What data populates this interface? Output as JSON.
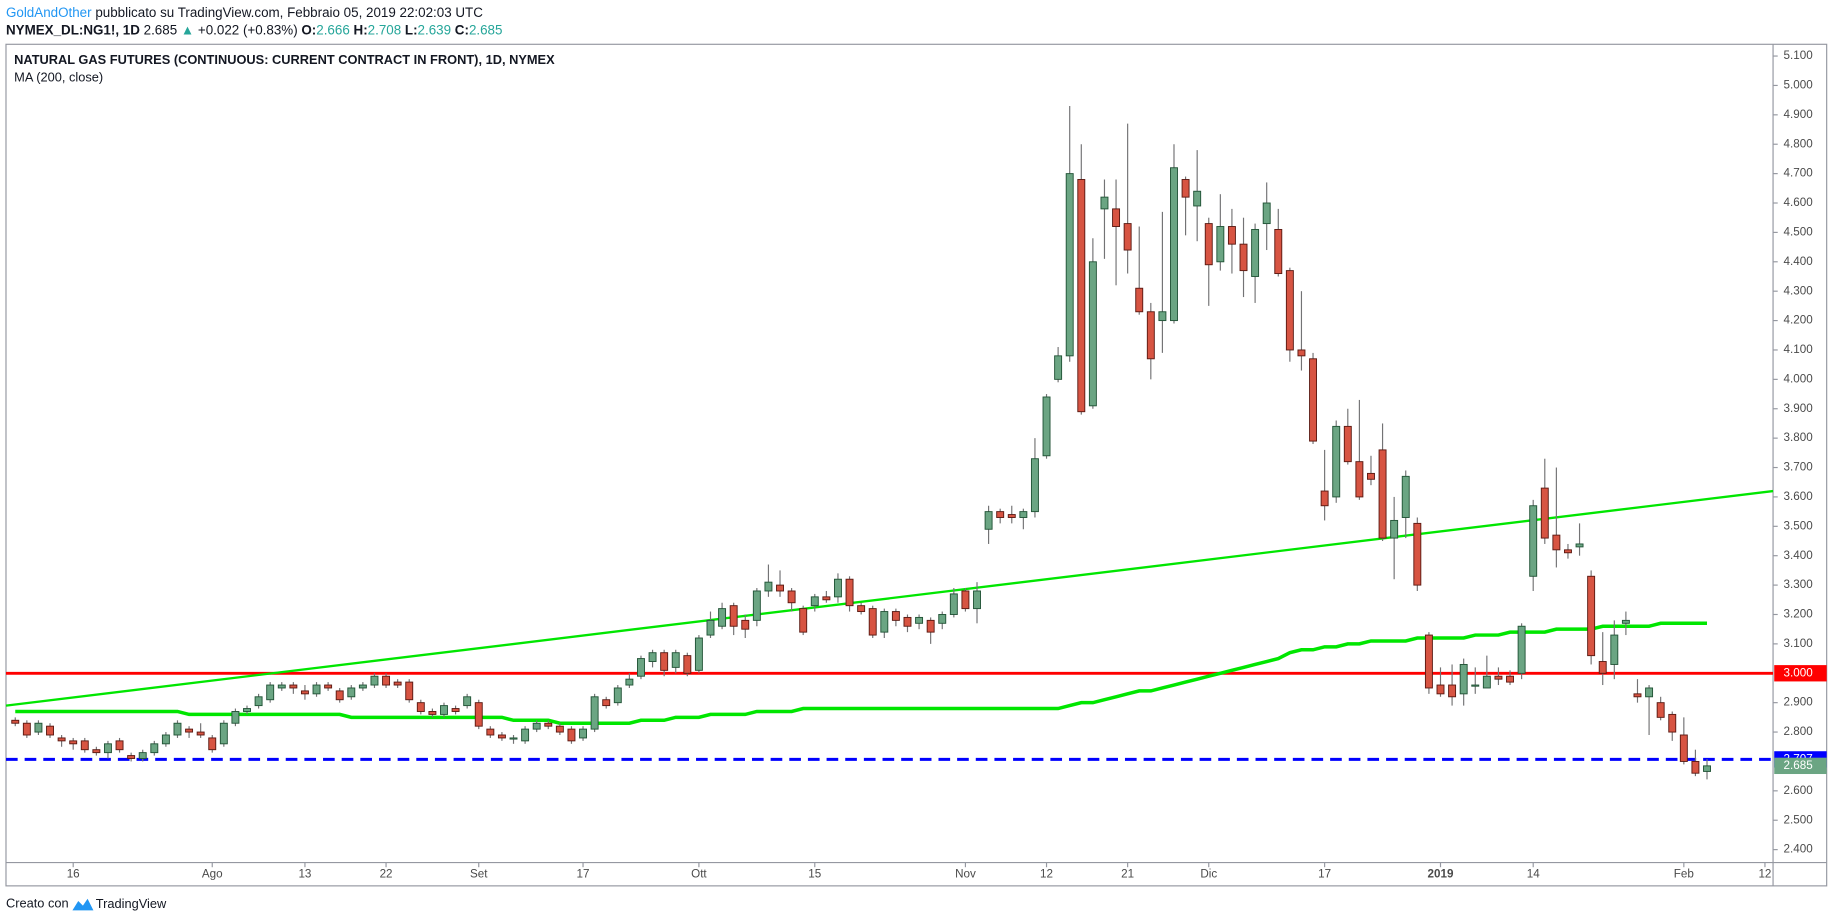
{
  "header": {
    "author": "GoldAndOther",
    "published": "pubblicato su TradingView.com, Febbraio 05, 2019 22:02:03 UTC",
    "symbol": "NYMEX_DL:NG1!, 1D",
    "last": "2.685",
    "arrow": "▲",
    "change": "+0.022 (+0.83%)",
    "o_label": "O:",
    "o": "2.666",
    "h_label": "H:",
    "h": "2.708",
    "l_label": "L:",
    "l": "2.639",
    "c_label": "C:",
    "c": "2.685"
  },
  "footer": {
    "text": "Creato con",
    "brand": "TradingView"
  },
  "chart_data": {
    "type": "candlestick",
    "title": "NATURAL GAS FUTURES (CONTINUOUS: CURRENT CONTRACT IN FRONT), 1D, NYMEX",
    "up_color": "#6ba583",
    "up_border": "#225437",
    "down_color": "#d75442",
    "down_border": "#5b1a13",
    "wick_color": "#737375",
    "open": [
      2.84,
      2.83,
      2.8,
      2.82,
      2.78,
      2.77,
      2.77,
      2.74,
      2.73,
      2.77,
      2.72,
      2.71,
      2.73,
      2.76,
      2.79,
      2.81,
      2.8,
      2.78,
      2.76,
      2.83,
      2.87,
      2.89,
      2.91,
      2.95,
      2.96,
      2.94,
      2.93,
      2.96,
      2.94,
      2.92,
      2.95,
      2.96,
      2.99,
      2.97,
      2.97,
      2.9,
      2.87,
      2.86,
      2.88,
      2.89,
      2.9,
      2.81,
      2.79,
      2.78,
      2.77,
      2.81,
      2.83,
      2.82,
      2.81,
      2.78,
      2.81,
      2.91,
      2.9,
      2.96,
      2.99,
      3.04,
      3.07,
      3.02,
      3.06,
      3.01,
      3.13,
      3.16,
      3.23,
      3.18,
      3.18,
      3.28,
      3.3,
      3.28,
      3.22,
      3.23,
      3.26,
      3.26,
      3.32,
      3.23,
      3.22,
      3.14,
      3.21,
      3.19,
      3.17,
      3.18,
      3.17,
      3.2,
      3.28,
      3.22,
      3.49,
      3.55,
      3.54,
      3.53,
      3.55,
      3.74,
      4.0,
      4.08,
      4.68,
      3.91,
      4.58,
      4.58,
      4.53,
      4.31,
      4.23,
      4.2,
      4.2,
      4.68,
      4.59,
      4.53,
      4.4,
      4.52,
      4.46,
      4.35,
      4.53,
      4.51,
      4.37,
      4.1,
      4.07,
      3.62,
      3.6,
      3.84,
      3.72,
      3.68,
      3.76,
      3.46,
      3.53,
      3.51,
      3.13,
      2.96,
      2.96,
      2.93,
      2.96,
      2.95,
      2.99,
      2.99,
      3.0,
      3.33,
      3.63,
      3.47,
      3.42,
      3.43,
      3.33,
      3.04,
      3.03,
      3.17,
      2.93,
      2.92,
      2.9,
      2.86,
      2.79,
      2.7,
      2.666
    ],
    "high": [
      2.85,
      2.84,
      2.84,
      2.83,
      2.79,
      2.78,
      2.78,
      2.75,
      2.77,
      2.78,
      2.73,
      2.74,
      2.77,
      2.8,
      2.84,
      2.82,
      2.83,
      2.79,
      2.84,
      2.88,
      2.89,
      2.93,
      2.97,
      2.97,
      2.97,
      2.96,
      2.97,
      2.97,
      2.95,
      2.96,
      2.97,
      3.0,
      3.0,
      2.98,
      2.98,
      2.91,
      2.88,
      2.9,
      2.89,
      2.93,
      2.91,
      2.82,
      2.8,
      2.79,
      2.82,
      2.84,
      2.84,
      2.83,
      2.82,
      2.82,
      2.93,
      2.92,
      2.96,
      3.0,
      3.06,
      3.08,
      3.08,
      3.08,
      3.07,
      3.13,
      3.21,
      3.24,
      3.24,
      3.2,
      3.29,
      3.37,
      3.35,
      3.29,
      3.23,
      3.27,
      3.28,
      3.34,
      3.33,
      3.24,
      3.23,
      3.22,
      3.22,
      3.2,
      3.2,
      3.19,
      3.21,
      3.29,
      3.29,
      3.31,
      3.57,
      3.56,
      3.57,
      3.56,
      3.8,
      3.95,
      4.11,
      4.93,
      4.8,
      4.48,
      4.68,
      4.68,
      4.87,
      4.52,
      4.26,
      4.57,
      4.8,
      4.69,
      4.78,
      4.55,
      4.63,
      4.58,
      4.55,
      4.53,
      4.67,
      4.58,
      4.38,
      4.3,
      4.09,
      3.76,
      3.86,
      3.9,
      3.93,
      3.74,
      3.85,
      3.6,
      3.69,
      3.53,
      3.14,
      3.02,
      3.03,
      3.05,
      3.02,
      3.06,
      3.02,
      3.01,
      3.17,
      3.59,
      3.73,
      3.7,
      3.44,
      3.51,
      3.35,
      3.14,
      3.18,
      3.21,
      2.98,
      2.96,
      2.92,
      2.87,
      2.85,
      2.74,
      2.708
    ],
    "low": [
      2.82,
      2.78,
      2.79,
      2.78,
      2.75,
      2.74,
      2.73,
      2.72,
      2.71,
      2.73,
      2.7,
      2.7,
      2.72,
      2.75,
      2.78,
      2.78,
      2.78,
      2.73,
      2.75,
      2.82,
      2.86,
      2.88,
      2.9,
      2.94,
      2.93,
      2.91,
      2.92,
      2.94,
      2.9,
      2.91,
      2.94,
      2.95,
      2.95,
      2.95,
      2.9,
      2.86,
      2.85,
      2.85,
      2.86,
      2.88,
      2.81,
      2.78,
      2.77,
      2.76,
      2.76,
      2.8,
      2.81,
      2.79,
      2.76,
      2.77,
      2.8,
      2.88,
      2.89,
      2.95,
      2.98,
      3.02,
      2.99,
      3.0,
      2.99,
      3.0,
      3.12,
      3.15,
      3.13,
      3.12,
      3.16,
      3.26,
      3.26,
      3.21,
      3.13,
      3.21,
      3.24,
      3.24,
      3.21,
      3.2,
      3.12,
      3.12,
      3.16,
      3.14,
      3.15,
      3.1,
      3.15,
      3.19,
      3.21,
      3.17,
      3.44,
      3.51,
      3.51,
      3.49,
      3.53,
      3.73,
      3.99,
      4.06,
      3.88,
      3.9,
      4.41,
      4.32,
      4.36,
      4.22,
      4.0,
      4.09,
      4.19,
      4.49,
      4.47,
      4.25,
      4.37,
      4.36,
      4.28,
      4.26,
      4.44,
      4.35,
      4.06,
      4.03,
      3.78,
      3.52,
      3.58,
      3.71,
      3.59,
      3.64,
      3.45,
      3.32,
      3.46,
      3.28,
      2.93,
      2.92,
      2.89,
      2.89,
      2.93,
      2.95,
      2.96,
      2.96,
      2.98,
      3.28,
      3.44,
      3.36,
      3.39,
      3.4,
      3.03,
      2.96,
      2.98,
      3.13,
      2.9,
      2.79,
      2.84,
      2.77,
      2.69,
      2.65,
      2.639
    ],
    "close": [
      2.83,
      2.79,
      2.83,
      2.79,
      2.77,
      2.76,
      2.74,
      2.73,
      2.76,
      2.74,
      2.71,
      2.73,
      2.76,
      2.79,
      2.83,
      2.8,
      2.79,
      2.74,
      2.83,
      2.87,
      2.88,
      2.92,
      2.96,
      2.96,
      2.95,
      2.93,
      2.96,
      2.95,
      2.91,
      2.95,
      2.96,
      2.99,
      2.96,
      2.96,
      2.91,
      2.87,
      2.86,
      2.89,
      2.87,
      2.92,
      2.82,
      2.79,
      2.78,
      2.78,
      2.81,
      2.83,
      2.82,
      2.8,
      2.77,
      2.81,
      2.92,
      2.89,
      2.95,
      2.98,
      3.05,
      3.07,
      3.01,
      3.07,
      3.0,
      3.12,
      3.18,
      3.22,
      3.16,
      3.15,
      3.28,
      3.31,
      3.28,
      3.24,
      3.14,
      3.26,
      3.25,
      3.32,
      3.23,
      3.21,
      3.13,
      3.21,
      3.18,
      3.16,
      3.19,
      3.14,
      3.2,
      3.27,
      3.22,
      3.28,
      3.55,
      3.53,
      3.53,
      3.55,
      3.73,
      3.94,
      4.08,
      4.7,
      3.89,
      4.4,
      4.62,
      4.52,
      4.44,
      4.23,
      4.07,
      4.23,
      4.72,
      4.62,
      4.64,
      4.39,
      4.52,
      4.46,
      4.37,
      4.51,
      4.6,
      4.36,
      4.1,
      4.08,
      3.79,
      3.57,
      3.84,
      3.72,
      3.6,
      3.66,
      3.46,
      3.52,
      3.67,
      3.3,
      2.95,
      2.93,
      2.92,
      3.03,
      2.96,
      2.99,
      2.98,
      2.97,
      3.16,
      3.57,
      3.46,
      3.42,
      3.41,
      3.44,
      3.06,
      3.0,
      3.13,
      3.18,
      2.92,
      2.95,
      2.85,
      2.8,
      2.7,
      2.66,
      2.685
    ],
    "ma": {
      "name": "MA (200, close)",
      "color": "#00e600",
      "values": [
        2.87,
        2.87,
        2.87,
        2.87,
        2.87,
        2.87,
        2.87,
        2.87,
        2.87,
        2.87,
        2.87,
        2.87,
        2.87,
        2.87,
        2.87,
        2.86,
        2.86,
        2.86,
        2.86,
        2.86,
        2.86,
        2.86,
        2.86,
        2.86,
        2.86,
        2.86,
        2.86,
        2.86,
        2.86,
        2.85,
        2.85,
        2.85,
        2.85,
        2.85,
        2.85,
        2.85,
        2.85,
        2.85,
        2.85,
        2.85,
        2.85,
        2.85,
        2.85,
        2.84,
        2.84,
        2.84,
        2.84,
        2.83,
        2.83,
        2.83,
        2.83,
        2.83,
        2.83,
        2.83,
        2.84,
        2.84,
        2.84,
        2.85,
        2.85,
        2.85,
        2.86,
        2.86,
        2.86,
        2.86,
        2.87,
        2.87,
        2.87,
        2.87,
        2.88,
        2.88,
        2.88,
        2.88,
        2.88,
        2.88,
        2.88,
        2.88,
        2.88,
        2.88,
        2.88,
        2.88,
        2.88,
        2.88,
        2.88,
        2.88,
        2.88,
        2.88,
        2.88,
        2.88,
        2.88,
        2.88,
        2.88,
        2.89,
        2.9,
        2.9,
        2.91,
        2.92,
        2.93,
        2.94,
        2.94,
        2.95,
        2.96,
        2.97,
        2.98,
        2.99,
        3.0,
        3.01,
        3.02,
        3.03,
        3.04,
        3.05,
        3.07,
        3.08,
        3.08,
        3.09,
        3.09,
        3.1,
        3.1,
        3.11,
        3.11,
        3.11,
        3.11,
        3.12,
        3.12,
        3.12,
        3.12,
        3.12,
        3.13,
        3.13,
        3.13,
        3.14,
        3.14,
        3.14,
        3.14,
        3.15,
        3.15,
        3.15,
        3.15,
        3.16,
        3.16,
        3.16,
        3.16,
        3.16,
        3.17,
        3.17,
        3.17,
        3.17,
        3.17
      ]
    },
    "trend_line": {
      "color": "#00e600",
      "x": [
        -0.8,
        151.7
      ],
      "y": [
        2.89,
        3.62
      ]
    },
    "levels": [
      {
        "value": 3.0,
        "label": "3.000",
        "color": "#ff0000",
        "style": "solid"
      },
      {
        "value": 2.707,
        "label": "2.707",
        "color": "#0000ff",
        "style": "dashed"
      }
    ],
    "last_price": {
      "value": 2.685,
      "label": "2.685",
      "color": "#6ba583"
    },
    "xlim": [
      -0.8,
      151.7
    ],
    "ylim": [
      2.356,
      5.14
    ],
    "xticks": [
      {
        "value": 5,
        "label": "16"
      },
      {
        "value": 17,
        "label": "Ago"
      },
      {
        "value": 25,
        "label": "13"
      },
      {
        "value": 32,
        "label": "22"
      },
      {
        "value": 40,
        "label": "Set"
      },
      {
        "value": 49,
        "label": "17"
      },
      {
        "value": 59,
        "label": "Ott"
      },
      {
        "value": 69,
        "label": "15"
      },
      {
        "value": 82,
        "label": "Nov"
      },
      {
        "value": 89,
        "label": "12"
      },
      {
        "value": 96,
        "label": "21"
      },
      {
        "value": 103,
        "label": "Dic"
      },
      {
        "value": 113,
        "label": "17"
      },
      {
        "value": 123,
        "label": "2019"
      },
      {
        "value": 131,
        "label": "14"
      },
      {
        "value": 144,
        "label": "Feb"
      },
      {
        "value": 151,
        "label": "12"
      }
    ],
    "yticks": [
      {
        "value": 2.4,
        "label": "2.400"
      },
      {
        "value": 2.5,
        "label": "2.500"
      },
      {
        "value": 2.6,
        "label": "2.600"
      },
      {
        "value": 2.8,
        "label": "2.800"
      },
      {
        "value": 2.9,
        "label": "2.900"
      },
      {
        "value": 3.1,
        "label": "3.100"
      },
      {
        "value": 3.2,
        "label": "3.200"
      },
      {
        "value": 3.3,
        "label": "3.300"
      },
      {
        "value": 3.4,
        "label": "3.400"
      },
      {
        "value": 3.5,
        "label": "3.500"
      },
      {
        "value": 3.6,
        "label": "3.600"
      },
      {
        "value": 3.7,
        "label": "3.700"
      },
      {
        "value": 3.8,
        "label": "3.800"
      },
      {
        "value": 3.9,
        "label": "3.900"
      },
      {
        "value": 4.0,
        "label": "4.000"
      },
      {
        "value": 4.1,
        "label": "4.100"
      },
      {
        "value": 4.2,
        "label": "4.200"
      },
      {
        "value": 4.3,
        "label": "4.300"
      },
      {
        "value": 4.4,
        "label": "4.400"
      },
      {
        "value": 4.5,
        "label": "4.500"
      },
      {
        "value": 4.6,
        "label": "4.600"
      },
      {
        "value": 4.7,
        "label": "4.700"
      },
      {
        "value": 4.8,
        "label": "4.800"
      },
      {
        "value": 4.9,
        "label": "4.900"
      },
      {
        "value": 5.0,
        "label": "5.000"
      },
      {
        "value": 5.1,
        "label": "5.100"
      }
    ]
  }
}
